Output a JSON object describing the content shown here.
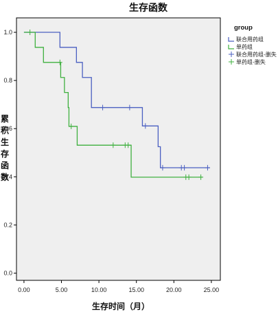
{
  "chart_data": {
    "type": "line",
    "step": true,
    "title": "生存函数",
    "xlabel": "生存时间（月）",
    "ylabel": "累积生存函数",
    "xlim": [
      -1,
      26.2
    ],
    "ylim": [
      -0.03,
      1.06
    ],
    "x_ticks": [
      "0.00",
      "5.00",
      "10.00",
      "15.00",
      "20.00",
      "25.00"
    ],
    "x_tick_values": [
      0,
      5,
      10,
      15,
      20,
      25
    ],
    "y_ticks": [
      "0.0",
      "0.2",
      "0.4",
      "0.6",
      "0.8",
      "1.0"
    ],
    "y_tick_values": [
      0,
      0.2,
      0.4,
      0.6,
      0.8,
      1.0
    ],
    "grid": false,
    "legend": {
      "title": "group",
      "placement": "right",
      "entries": [
        "联合用药组",
        "单药组",
        "联合用药组-删失",
        "单药组-删失"
      ]
    },
    "series": [
      {
        "name": "联合用药组",
        "color": "#4a5fc1",
        "steps": [
          [
            0,
            1.0
          ],
          [
            4.8,
            0.9375
          ],
          [
            7.0,
            0.875
          ],
          [
            7.8,
            0.8125
          ],
          [
            9.0,
            0.6875
          ],
          [
            15.8,
            0.6111
          ],
          [
            17.9,
            0.525
          ],
          [
            18.2,
            0.4375
          ],
          [
            24.8,
            0.4375
          ]
        ],
        "censored": [
          [
            10.5,
            0.6875
          ],
          [
            14.1,
            0.6875
          ],
          [
            16.2,
            0.6111
          ],
          [
            18.5,
            0.4375
          ],
          [
            21.0,
            0.4375
          ],
          [
            21.4,
            0.4375
          ],
          [
            24.5,
            0.4375
          ]
        ]
      },
      {
        "name": "单药组",
        "color": "#3fb03f",
        "steps": [
          [
            0,
            1.0
          ],
          [
            1.5,
            0.9375
          ],
          [
            2.6,
            0.875
          ],
          [
            4.9,
            0.8125
          ],
          [
            5.4,
            0.75
          ],
          [
            5.9,
            0.6875
          ],
          [
            6.0,
            0.6094
          ],
          [
            7.1,
            0.5313
          ],
          [
            14.3,
            0.3984
          ],
          [
            23.8,
            0.3984
          ]
        ],
        "censored": [
          [
            0.8,
            1.0
          ],
          [
            4.8,
            0.875
          ],
          [
            6.3,
            0.6094
          ],
          [
            11.9,
            0.5313
          ],
          [
            13.5,
            0.5313
          ],
          [
            13.9,
            0.5313
          ],
          [
            21.6,
            0.3984
          ],
          [
            22.0,
            0.3984
          ],
          [
            23.6,
            0.3984
          ]
        ]
      }
    ]
  }
}
